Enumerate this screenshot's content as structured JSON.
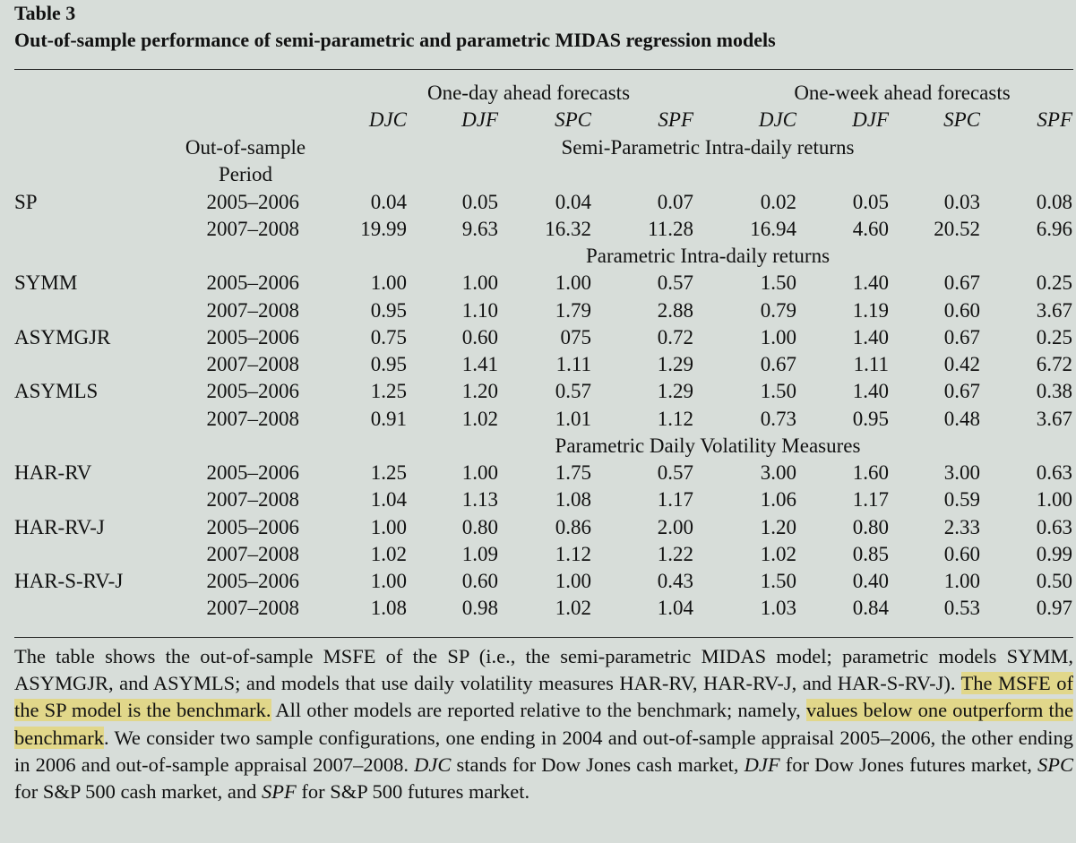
{
  "table_label": "Table 3",
  "table_title": "Out-of-sample performance of semi-parametric and parametric MIDAS regression models",
  "header": {
    "group_one_day": "One-day ahead forecasts",
    "group_one_week": "One-week ahead forecasts",
    "columns": [
      "DJC",
      "DJF",
      "SPC",
      "SPF",
      "DJC",
      "DJF",
      "SPC",
      "SPF"
    ],
    "period_label_line1": "Out-of-sample",
    "period_label_line2": "Period"
  },
  "sections": [
    {
      "title": "Semi-Parametric Intra-daily returns",
      "rows": [
        {
          "model": "SP",
          "period": "2005–2006",
          "values": [
            "0.04",
            "0.05",
            "0.04",
            "0.07",
            "0.02",
            "0.05",
            "0.03",
            "0.08"
          ]
        },
        {
          "model": "",
          "period": "2007–2008",
          "values": [
            "19.99",
            "9.63",
            "16.32",
            "11.28",
            "16.94",
            "4.60",
            "20.52",
            "6.96"
          ]
        }
      ]
    },
    {
      "title": "Parametric Intra-daily returns",
      "rows": [
        {
          "model": "SYMM",
          "period": "2005–2006",
          "values": [
            "1.00",
            "1.00",
            "1.00",
            "0.57",
            "1.50",
            "1.40",
            "0.67",
            "0.25"
          ]
        },
        {
          "model": "",
          "period": "2007–2008",
          "values": [
            "0.95",
            "1.10",
            "1.79",
            "2.88",
            "0.79",
            "1.19",
            "0.60",
            "3.67"
          ]
        },
        {
          "model": "ASYMGJR",
          "period": "2005–2006",
          "values": [
            "0.75",
            "0.60",
            "075",
            "0.72",
            "1.00",
            "1.40",
            "0.67",
            "0.25"
          ]
        },
        {
          "model": "",
          "period": "2007–2008",
          "values": [
            "0.95",
            "1.41",
            "1.11",
            "1.29",
            "0.67",
            "1.11",
            "0.42",
            "6.72"
          ]
        },
        {
          "model": "ASYMLS",
          "period": "2005–2006",
          "values": [
            "1.25",
            "1.20",
            "0.57",
            "1.29",
            "1.50",
            "1.40",
            "0.67",
            "0.38"
          ]
        },
        {
          "model": "",
          "period": "2007–2008",
          "values": [
            "0.91",
            "1.02",
            "1.01",
            "1.12",
            "0.73",
            "0.95",
            "0.48",
            "3.67"
          ]
        }
      ]
    },
    {
      "title": "Parametric Daily Volatility Measures",
      "rows": [
        {
          "model": "HAR-RV",
          "period": "2005–2006",
          "values": [
            "1.25",
            "1.00",
            "1.75",
            "0.57",
            "3.00",
            "1.60",
            "3.00",
            "0.63"
          ]
        },
        {
          "model": "",
          "period": "2007–2008",
          "values": [
            "1.04",
            "1.13",
            "1.08",
            "1.17",
            "1.06",
            "1.17",
            "0.59",
            "1.00"
          ]
        },
        {
          "model": "HAR-RV-J",
          "period": "2005–2006",
          "values": [
            "1.00",
            "0.80",
            "0.86",
            "2.00",
            "1.20",
            "0.80",
            "2.33",
            "0.63"
          ]
        },
        {
          "model": "",
          "period": "2007–2008",
          "values": [
            "1.02",
            "1.09",
            "1.12",
            "1.22",
            "1.02",
            "0.85",
            "0.60",
            "0.99"
          ]
        },
        {
          "model": "HAR-S-RV-J",
          "period": "2005–2006",
          "values": [
            "1.00",
            "0.60",
            "1.00",
            "0.43",
            "1.50",
            "0.40",
            "1.00",
            "0.50"
          ]
        },
        {
          "model": "",
          "period": "2007–2008",
          "values": [
            "1.08",
            "0.98",
            "1.02",
            "1.04",
            "1.03",
            "0.84",
            "0.53",
            "0.97"
          ]
        }
      ]
    }
  ],
  "caption": {
    "part1": "The table shows the out-of-sample MSFE of the SP (i.e., the semi-parametric MIDAS model; parametric models SYMM, ASYMGJR, and ASYMLS; and models that use daily volatility measures HAR-RV, HAR-RV-J, and HAR-S-RV-J). ",
    "highlight1": "The MSFE of the SP model is the benchmark.",
    "part2": " All other models are reported relative to the benchmark; namely, ",
    "highlight2": "values below one outperform the benchmark",
    "part3": ". We consider two sample configurations, one ending in 2004 and out-of-sample appraisal 2005–2006, the other ending in 2006 and out-of-sample appraisal 2007–2008. ",
    "abbr_djc": "DJC",
    "text_djc": " stands for Dow Jones cash market, ",
    "abbr_djf": "DJF",
    "text_djf": " for Dow Jones futures market, ",
    "abbr_spc": "SPC",
    "text_spc": " for S&P 500 cash market, and ",
    "abbr_spf": "SPF",
    "text_spf": " for S&P 500 futures market."
  },
  "colors": {
    "background": "#d7ddd9",
    "highlight": "#e1d78a"
  }
}
